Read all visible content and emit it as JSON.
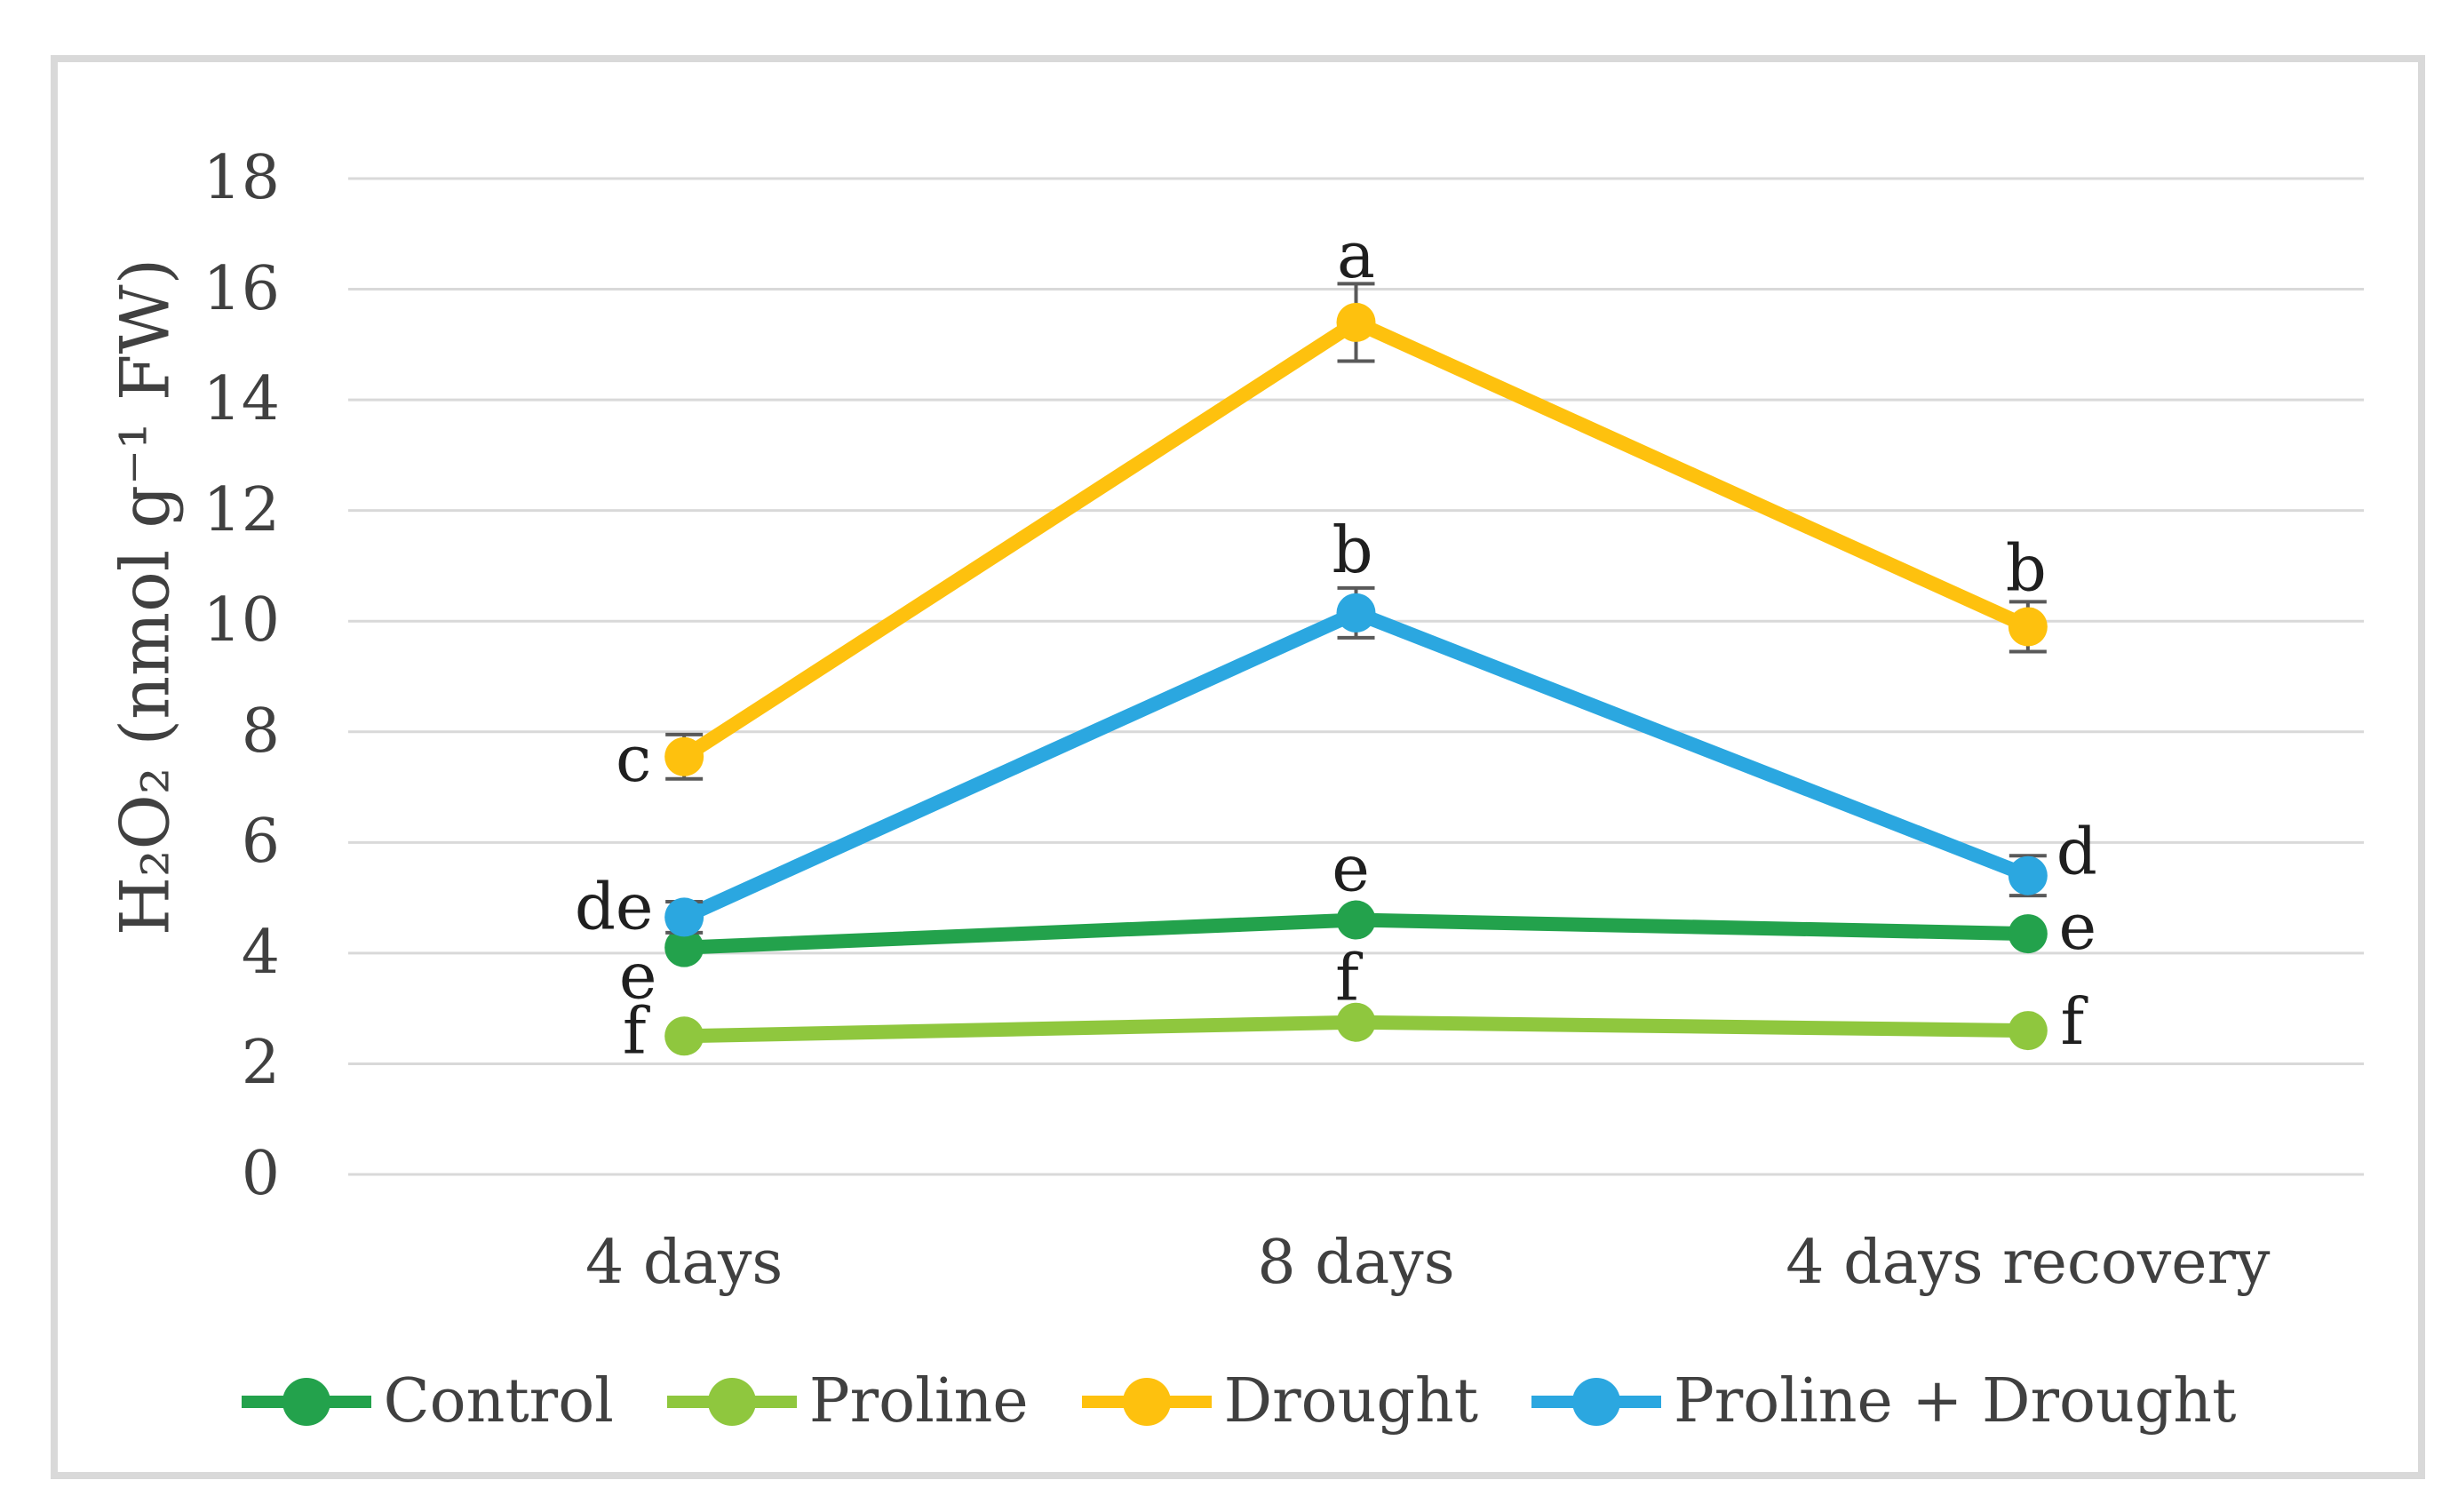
{
  "figure": {
    "background": "#ffffff",
    "frame_color": "#d9d9d9"
  },
  "colors": {
    "grid": "#d9d9d9",
    "axis_text": "#404040",
    "letter_text": "#1f1f1f",
    "error_bar": "#595959"
  },
  "chart_data": {
    "type": "line",
    "title": "",
    "xlabel": "",
    "ylabel": "H₂O₂ (nmol g⁻¹ FW)",
    "categories": [
      "4 days",
      "8 days",
      "4 days recovery"
    ],
    "ylim": [
      0,
      18
    ],
    "yticks": [
      0,
      2,
      4,
      6,
      8,
      10,
      12,
      14,
      16,
      18
    ],
    "grid": "horizontal-only",
    "legend_position": "bottom",
    "marker_style": "circle",
    "series": [
      {
        "name": "Control",
        "color": "#23a24c",
        "values": [
          4.1,
          4.6,
          4.35
        ],
        "errors": [
          0,
          0,
          0
        ],
        "letters": [
          "e",
          "e",
          "e"
        ],
        "letter_offsets": [
          [
            -52,
            32
          ],
          [
            -6,
            -58
          ],
          [
            56,
            -8
          ]
        ]
      },
      {
        "name": "Proline",
        "color": "#8fc73e",
        "values": [
          2.5,
          2.75,
          2.6
        ],
        "errors": [
          0,
          0,
          0
        ],
        "letters": [
          "f",
          "f",
          "f"
        ],
        "letter_offsets": [
          [
            -56,
            -6
          ],
          [
            -10,
            -50
          ],
          [
            50,
            -10
          ]
        ]
      },
      {
        "name": "Drought",
        "color": "#fec10e",
        "values": [
          7.55,
          15.4,
          9.9
        ],
        "errors": [
          0.4,
          0.7,
          0.45
        ],
        "letters": [
          "c",
          "a",
          "b"
        ],
        "letter_offsets": [
          [
            -57,
            2
          ],
          [
            0,
            -76
          ],
          [
            -2,
            -66
          ]
        ]
      },
      {
        "name": "Proline + Drought",
        "color": "#2ba7e0",
        "values": [
          4.65,
          10.15,
          5.4
        ],
        "errors": [
          0.28,
          0.45,
          0.36
        ],
        "letters": [
          "de",
          "b",
          "d"
        ],
        "letter_offsets": [
          [
            -79,
            -12
          ],
          [
            -4,
            -71
          ],
          [
            55,
            -27
          ]
        ]
      }
    ]
  }
}
